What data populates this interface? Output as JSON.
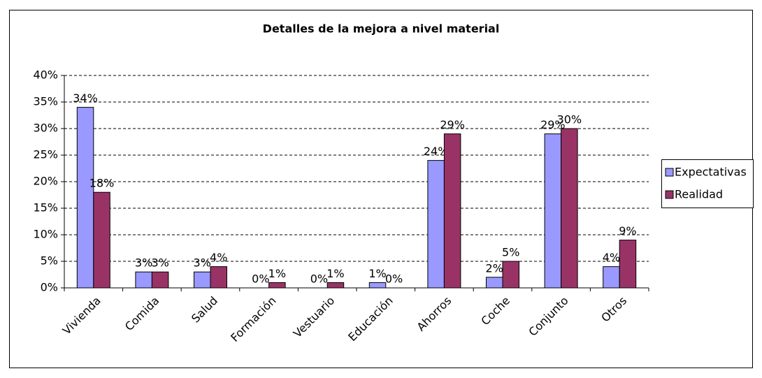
{
  "chart_data": {
    "type": "bar",
    "title": "Detalles de la mejora a nivel material",
    "categories": [
      "Vivienda",
      "Comida",
      "Salud",
      "Formación",
      "Vestuario",
      "Educación",
      "Ahorros",
      "Coche",
      "Conjunto",
      "Otros"
    ],
    "series": [
      {
        "name": "Expectativas",
        "color": "#9999ff",
        "values": [
          34,
          3,
          3,
          0,
          0,
          1,
          24,
          2,
          29,
          4
        ],
        "value_labels": [
          "34%",
          "3%",
          "3%",
          "0%",
          "0%",
          "1%",
          "24%",
          "2%",
          "29%",
          "4%"
        ]
      },
      {
        "name": "Realidad",
        "color": "#993366",
        "values": [
          18,
          3,
          4,
          1,
          1,
          0,
          29,
          5,
          30,
          9
        ],
        "value_labels": [
          "18%",
          "3%",
          "4%",
          "1%",
          "1%",
          "0%",
          "29%",
          "5%",
          "30%",
          "9%"
        ]
      }
    ],
    "ylim": [
      0,
      40
    ],
    "yticks": [
      {
        "value": 0,
        "label": "0%"
      },
      {
        "value": 5,
        "label": "5%"
      },
      {
        "value": 10,
        "label": "10%"
      },
      {
        "value": 15,
        "label": "15%"
      },
      {
        "value": 20,
        "label": "20%"
      },
      {
        "value": 25,
        "label": "25%"
      },
      {
        "value": 30,
        "label": "30%"
      },
      {
        "value": 35,
        "label": "35%"
      },
      {
        "value": 40,
        "label": "40%"
      }
    ],
    "grid": true,
    "legend": "right"
  }
}
